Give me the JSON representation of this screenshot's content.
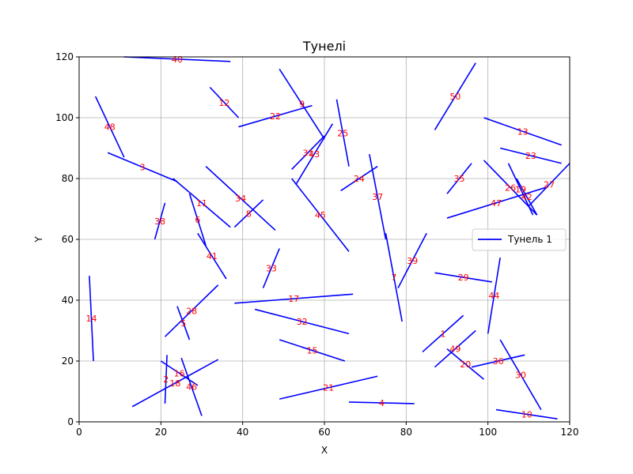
{
  "chart_data": {
    "type": "line",
    "title": "Тунелі",
    "xlabel": "X",
    "ylabel": "Y",
    "xlim": [
      0,
      120
    ],
    "ylim": [
      0,
      120
    ],
    "xticks": [
      0,
      20,
      40,
      60,
      80,
      100,
      120
    ],
    "yticks": [
      0,
      20,
      40,
      60,
      80,
      100,
      120
    ],
    "grid": true,
    "legend": {
      "placement": "right",
      "entries": [
        "Тунель 1"
      ]
    },
    "colors": {
      "line": "#0000ff",
      "label": "#ff0000",
      "grid": "#b0b0b0"
    },
    "series": [
      {
        "name": "Тунель 1",
        "segments": [
          {
            "label": "1",
            "x": [
              84,
              94
            ],
            "y": [
              23,
              35
            ]
          },
          {
            "label": "2",
            "x": [
              21.5,
              21
            ],
            "y": [
              22,
              6
            ]
          },
          {
            "label": "3",
            "x": [
              7,
              24
            ],
            "y": [
              88.5,
              79
            ]
          },
          {
            "label": "4",
            "x": [
              66,
              82
            ],
            "y": [
              6.5,
              6
            ]
          },
          {
            "label": "5",
            "x": [
              24,
              27
            ],
            "y": [
              38,
              27
            ]
          },
          {
            "label": "6",
            "x": [
              27,
              31
            ],
            "y": [
              75,
              58
            ]
          },
          {
            "label": "7",
            "x": [
              75,
              79
            ],
            "y": [
              62,
              33
            ]
          },
          {
            "label": "8",
            "x": [
              38,
              45
            ],
            "y": [
              64,
              73
            ]
          },
          {
            "label": "9",
            "x": [
              49,
              60
            ],
            "y": [
              116,
              93
            ]
          },
          {
            "label": "10",
            "x": [
              102,
              117
            ],
            "y": [
              4,
              1
            ]
          },
          {
            "label": "11",
            "x": [
              23,
              37
            ],
            "y": [
              80,
              64
            ]
          },
          {
            "label": "12",
            "x": [
              32,
              39
            ],
            "y": [
              110,
              100
            ]
          },
          {
            "label": "13",
            "x": [
              99,
              118
            ],
            "y": [
              100,
              91
            ]
          },
          {
            "label": "14",
            "x": [
              2.5,
              3.5
            ],
            "y": [
              48,
              20
            ]
          },
          {
            "label": "15",
            "x": [
              49,
              65
            ],
            "y": [
              27,
              20
            ]
          },
          {
            "label": "16",
            "x": [
              20,
              29
            ],
            "y": [
              20,
              12
            ]
          },
          {
            "label": "17",
            "x": [
              38,
              67
            ],
            "y": [
              39,
              42
            ]
          },
          {
            "label": "18",
            "x": [
              13,
              34
            ],
            "y": [
              5,
              20.5
            ]
          },
          {
            "label": "19",
            "x": [
              105,
              111
            ],
            "y": [
              85,
              68
            ]
          },
          {
            "label": "20",
            "x": [
              90,
              99
            ],
            "y": [
              24,
              14
            ]
          },
          {
            "label": "21",
            "x": [
              49,
              73
            ],
            "y": [
              7.5,
              15
            ]
          },
          {
            "label": "22",
            "x": [
              39,
              57
            ],
            "y": [
              97,
              104
            ]
          },
          {
            "label": "23",
            "x": [
              103,
              118
            ],
            "y": [
              90,
              85
            ]
          },
          {
            "label": "24",
            "x": [
              64,
              73
            ],
            "y": [
              76,
              84
            ]
          },
          {
            "label": "25",
            "x": [
              63,
              66
            ],
            "y": [
              106,
              84
            ]
          },
          {
            "label": "26",
            "x": [
              99,
              112
            ],
            "y": [
              86,
              68
            ]
          },
          {
            "label": "27",
            "x": [
              110,
              120
            ],
            "y": [
              71,
              85
            ]
          },
          {
            "label": "28",
            "x": [
              21,
              34
            ],
            "y": [
              28,
              45
            ]
          },
          {
            "label": "29",
            "x": [
              87,
              101
            ],
            "y": [
              49,
              46
            ]
          },
          {
            "label": "30",
            "x": [
              103,
              113
            ],
            "y": [
              27,
              4
            ]
          },
          {
            "label": "31",
            "x": [
              52,
              60
            ],
            "y": [
              83,
              94
            ]
          },
          {
            "label": "32",
            "x": [
              43,
              66
            ],
            "y": [
              37,
              29
            ]
          },
          {
            "label": "33",
            "x": [
              45,
              49
            ],
            "y": [
              44,
              57
            ]
          },
          {
            "label": "34",
            "x": [
              31,
              48
            ],
            "y": [
              84,
              63
            ]
          },
          {
            "label": "35",
            "x": [
              90,
              96
            ],
            "y": [
              75,
              85
            ]
          },
          {
            "label": "36",
            "x": [
              96,
              109
            ],
            "y": [
              18,
              22
            ]
          },
          {
            "label": "37",
            "x": [
              71,
              75
            ],
            "y": [
              88,
              60
            ]
          },
          {
            "label": "38",
            "x": [
              18.5,
              21
            ],
            "y": [
              60,
              72
            ]
          },
          {
            "label": "39",
            "x": [
              78,
              85
            ],
            "y": [
              44,
              62
            ]
          },
          {
            "label": "40",
            "x": [
              11,
              37
            ],
            "y": [
              120,
              118.5
            ]
          },
          {
            "label": "41",
            "x": [
              29,
              36
            ],
            "y": [
              62,
              47
            ]
          },
          {
            "label": "42",
            "x": [
              107,
              112
            ],
            "y": [
              80,
              68
            ]
          },
          {
            "label": "43",
            "x": [
              53,
              62
            ],
            "y": [
              78,
              98
            ]
          },
          {
            "label": "44",
            "x": [
              100,
              103
            ],
            "y": [
              29,
              54
            ]
          },
          {
            "label": "45",
            "x": [
              52,
              66
            ],
            "y": [
              80,
              56
            ]
          },
          {
            "label": "46",
            "x": [
              25,
              30
            ],
            "y": [
              21,
              2
            ]
          },
          {
            "label": "47",
            "x": [
              90,
              114
            ],
            "y": [
              67,
              77
            ]
          },
          {
            "label": "48",
            "x": [
              4,
              11
            ],
            "y": [
              107,
              87
            ]
          },
          {
            "label": "49",
            "x": [
              87,
              97
            ],
            "y": [
              18,
              30
            ]
          },
          {
            "label": "50",
            "x": [
              87,
              97
            ],
            "y": [
              96,
              118
            ]
          }
        ]
      }
    ]
  }
}
